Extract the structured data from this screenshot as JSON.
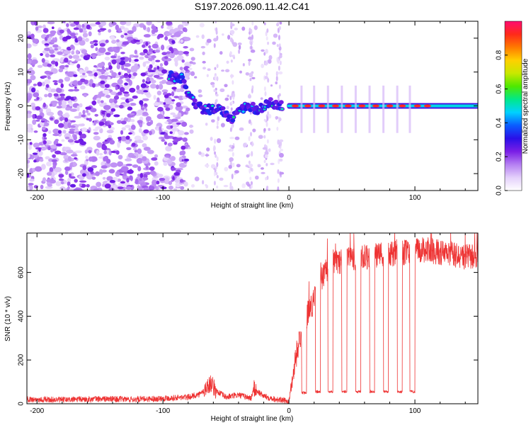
{
  "title": "S197.2026.090.11.42.C41",
  "chart_data": [
    {
      "type": "heatmap",
      "title": "S197.2026.090.11.42.C41",
      "xlabel": "Height of straight line (km)",
      "ylabel": "Frequency (Hz)",
      "xlim": [
        -208,
        150
      ],
      "ylim": [
        -25,
        25
      ],
      "xticks": [
        -200,
        -100,
        0,
        100
      ],
      "xtick_labels": [
        "-200",
        "-100",
        "0",
        "100"
      ],
      "yticks": [
        -20,
        -10,
        0,
        10,
        20
      ],
      "ytick_labels": [
        "-20",
        "-10",
        "0",
        "10",
        "20"
      ],
      "colorbar": {
        "label": "Normalized spectral amplitude",
        "range": [
          0,
          1
        ],
        "ticks": [
          0,
          0.2,
          0.4,
          0.6,
          0.8
        ],
        "tick_labels": [
          "0.0",
          "0.2",
          "0.4",
          "0.6",
          "0.8"
        ],
        "colors": [
          "#ffffff",
          "#e4d0fb",
          "#b57ff2",
          "#7a1ee6",
          "#2a10e8",
          "#0a5cff",
          "#00d2ff",
          "#00e88a",
          "#4ee800",
          "#c8e800",
          "#ffd000",
          "#ff7a00",
          "#ff2a1a",
          "#ff0c70"
        ]
      },
      "features": [
        {
          "name": "noise",
          "x_range": [
            -208,
            -80
          ],
          "freq_range": [
            -25,
            25
          ],
          "amplitude_range": [
            0.05,
            0.25
          ]
        },
        {
          "name": "tracking-signal",
          "x_range": [
            -95,
            -5
          ],
          "freq_points": [
            [
              -95,
              9
            ],
            [
              -85,
              8
            ],
            [
              -78,
              2
            ],
            [
              -68,
              -1
            ],
            [
              -55,
              -1
            ],
            [
              -45,
              -4
            ],
            [
              -35,
              0
            ],
            [
              -25,
              -1
            ],
            [
              -15,
              1
            ],
            [
              -5,
              0
            ]
          ],
          "amplitude_range": [
            0.3,
            0.5
          ]
        },
        {
          "name": "carrier-line",
          "x_range": [
            0,
            150
          ],
          "freq": 0,
          "amplitude_range": [
            0.5,
            1.0
          ]
        }
      ]
    },
    {
      "type": "line",
      "xlabel": "Height of straight line (km)",
      "ylabel": "SNR (10 * v/v)",
      "xlim": [
        -208,
        150
      ],
      "ylim": [
        0,
        780
      ],
      "xticks": [
        -200,
        -100,
        0,
        100
      ],
      "xtick_labels": [
        "-200",
        "-100",
        "0",
        "100"
      ],
      "yticks": [
        0,
        200,
        400,
        600
      ],
      "ytick_labels": [
        "0",
        "200",
        "400",
        "600"
      ],
      "series": [
        {
          "name": "SNR",
          "color": "#ee3333",
          "x": [
            -208,
            -180,
            -150,
            -120,
            -100,
            -80,
            -70,
            -62,
            -58,
            -50,
            -40,
            -30,
            -28,
            -20,
            -10,
            0,
            5,
            8,
            10,
            15,
            20,
            25,
            30,
            35,
            40,
            45,
            50,
            60,
            70,
            80,
            90,
            100,
            110,
            120,
            130,
            140,
            150
          ],
          "values": [
            20,
            18,
            22,
            20,
            25,
            30,
            45,
            95,
            60,
            30,
            40,
            25,
            70,
            35,
            20,
            10,
            200,
            280,
            330,
            420,
            470,
            560,
            610,
            640,
            650,
            660,
            655,
            670,
            675,
            680,
            690,
            700,
            705,
            690,
            680,
            670,
            675
          ]
        }
      ],
      "dropouts": [
        {
          "x_range": [
            10,
            14
          ],
          "value": 50
        },
        {
          "x_range": [
            21,
            25
          ],
          "value": 55
        },
        {
          "x_range": [
            31,
            35
          ],
          "value": 55
        },
        {
          "x_range": [
            42,
            46
          ],
          "value": 55
        },
        {
          "x_range": [
            53,
            57
          ],
          "value": 55
        },
        {
          "x_range": [
            64,
            68
          ],
          "value": 55
        },
        {
          "x_range": [
            75,
            79
          ],
          "value": 55
        },
        {
          "x_range": [
            86,
            90
          ],
          "value": 55
        },
        {
          "x_range": [
            96,
            100
          ],
          "value": 55
        }
      ]
    }
  ]
}
